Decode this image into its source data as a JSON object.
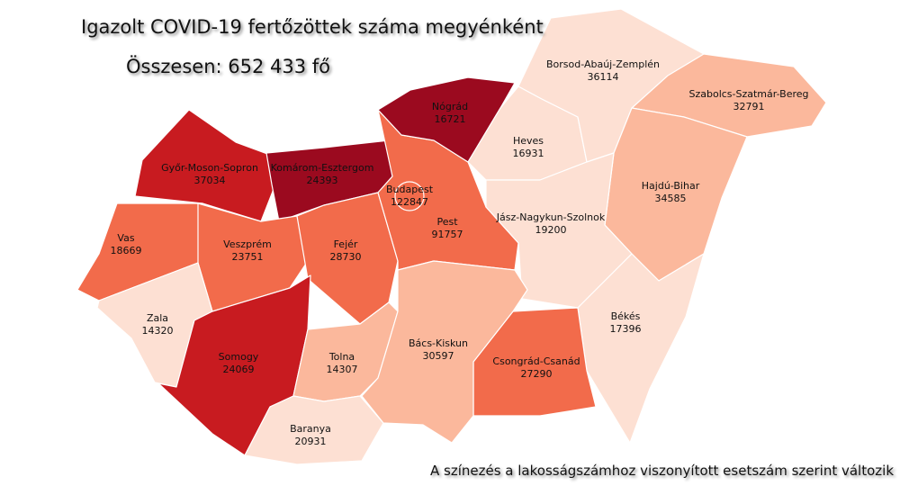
{
  "title": "Igazolt COVID-19 fertőzöttek száma megyénként",
  "total": "Összesen: 652 433 fő",
  "note": "A színezés a lakosságszámhoz viszonyított esetszám szerint változik",
  "colors": {
    "darkest": "#9b0a1f",
    "dark": "#c81b20",
    "medium": "#f26b4b",
    "light": "#fbb89c",
    "lightest": "#fde0d3"
  },
  "counties": [
    {
      "name": "Győr-Moson-Sopron",
      "cases": "37034",
      "shade": "dark"
    },
    {
      "name": "Komárom-Esztergom",
      "cases": "24393",
      "shade": "darkest"
    },
    {
      "name": "Vas",
      "cases": "18669",
      "shade": "medium"
    },
    {
      "name": "Veszprém",
      "cases": "23751",
      "shade": "medium"
    },
    {
      "name": "Fejér",
      "cases": "28730",
      "shade": "medium"
    },
    {
      "name": "Zala",
      "cases": "14320",
      "shade": "lightest"
    },
    {
      "name": "Somogy",
      "cases": "24069",
      "shade": "dark"
    },
    {
      "name": "Tolna",
      "cases": "14307",
      "shade": "light"
    },
    {
      "name": "Baranya",
      "cases": "20931",
      "shade": "lightest"
    },
    {
      "name": "Pest",
      "cases": "91757",
      "shade": "medium"
    },
    {
      "name": "Budapest",
      "cases": "122847",
      "shade": "medium"
    },
    {
      "name": "Nógrád",
      "cases": "16721",
      "shade": "darkest"
    },
    {
      "name": "Heves",
      "cases": "16931",
      "shade": "lightest"
    },
    {
      "name": "Borsod-Abaúj-Zemplén",
      "cases": "36114",
      "shade": "lightest"
    },
    {
      "name": "Szabolcs-Szatmár-Bereg",
      "cases": "32791",
      "shade": "light"
    },
    {
      "name": "Hajdú-Bihar",
      "cases": "34585",
      "shade": "light"
    },
    {
      "name": "Jász-Nagykun-Szolnok",
      "cases": "19200",
      "shade": "lightest"
    },
    {
      "name": "Békés",
      "cases": "17396",
      "shade": "lightest"
    },
    {
      "name": "Csongrád-Csanád",
      "cases": "27290",
      "shade": "medium"
    },
    {
      "name": "Bács-Kiskun",
      "cases": "30597",
      "shade": "light"
    }
  ]
}
